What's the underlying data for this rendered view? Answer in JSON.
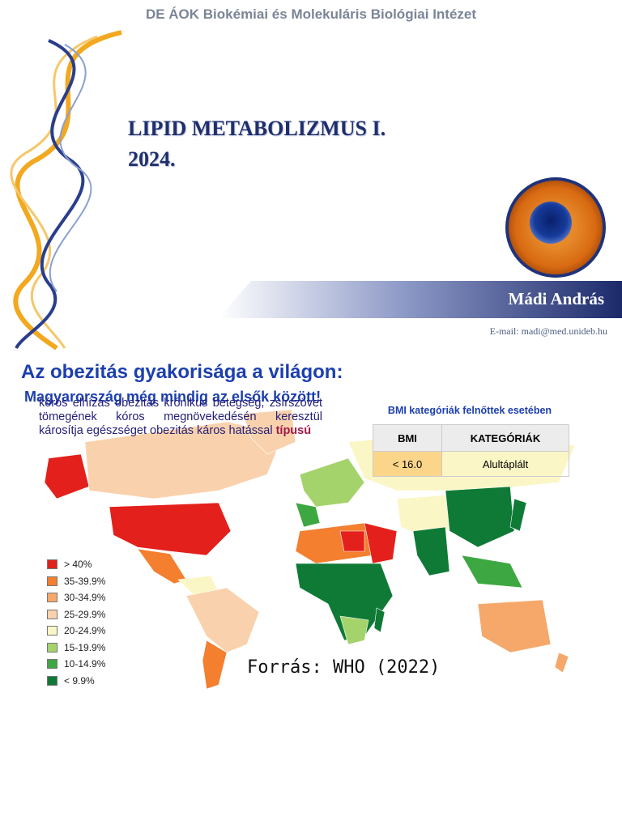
{
  "slide1": {
    "institute": "DE ÁOK Biokémiai és Molekuláris Biológiai Intézet",
    "title_line1": "LIPID METABOLIZMUS I.",
    "title_line2": "2024.",
    "author": "Mádi András",
    "email": "E-mail: madi@med.unideb.hu"
  },
  "slide2": {
    "title": "Az obezitás gyakorisága a világon:",
    "subtitle": "Magyarország még mindig az elsők között!",
    "legend": [
      {
        "label": "> 40%",
        "color": "#e3201b"
      },
      {
        "label": "35-39.9%",
        "color": "#f37f2f"
      },
      {
        "label": "30-34.9%",
        "color": "#f6a86a"
      },
      {
        "label": "25-29.9%",
        "color": "#f9d2ad"
      },
      {
        "label": "20-24.9%",
        "color": "#fbf6c6"
      },
      {
        "label": "15-19.9%",
        "color": "#a5d36b"
      },
      {
        "label": "10-14.9%",
        "color": "#3da741"
      },
      {
        "label": "< 9.9%",
        "color": "#0f7a36"
      }
    ],
    "source": "Forrás: WHO (2022)"
  },
  "body": {
    "part1": "kórós elhízás obezitás krónikus betegség, zsírszövet tömegének kóros megnövekedésén keresztül károsítja egészséget obezitás káros hatással",
    "part2": "típusú"
  },
  "bmi": {
    "caption": "BMI kategóriák felnőttek esetében",
    "col1": "BMI",
    "col2": "KATEGÓRIÁK",
    "rows": [
      {
        "bmi": "< 16.0",
        "category": "Alultáplált",
        "color": "#fbd58a"
      }
    ]
  }
}
